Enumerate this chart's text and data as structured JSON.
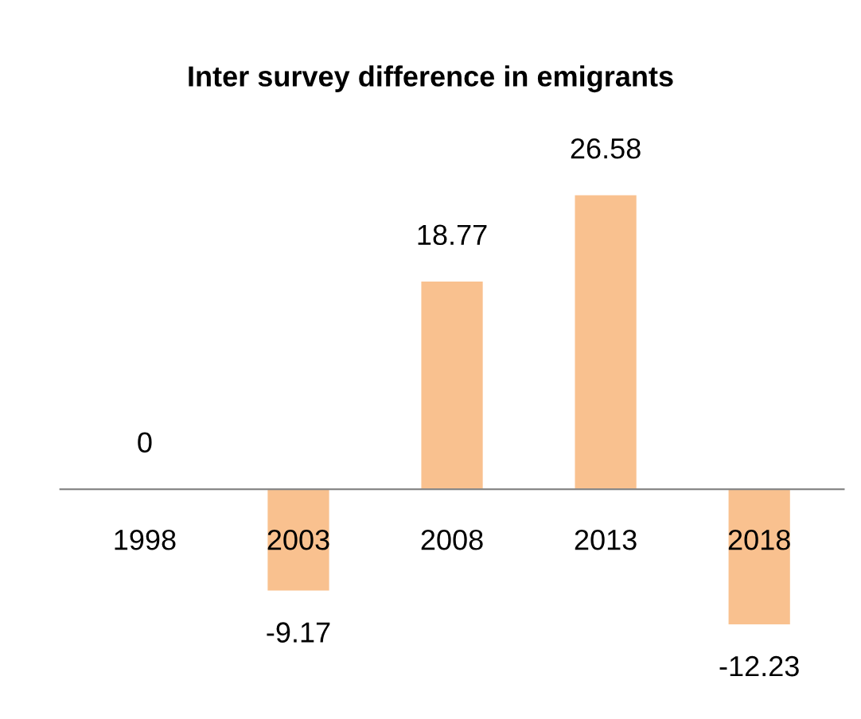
{
  "chart_data": {
    "type": "bar",
    "title": "Inter survey difference in emigrants",
    "categories": [
      "1998",
      "2003",
      "2008",
      "2013",
      "2018"
    ],
    "values": [
      0,
      -9.17,
      18.77,
      26.58,
      -12.23
    ],
    "color": "#f9c18f",
    "data_labels": true,
    "grid": false,
    "legend": false
  }
}
